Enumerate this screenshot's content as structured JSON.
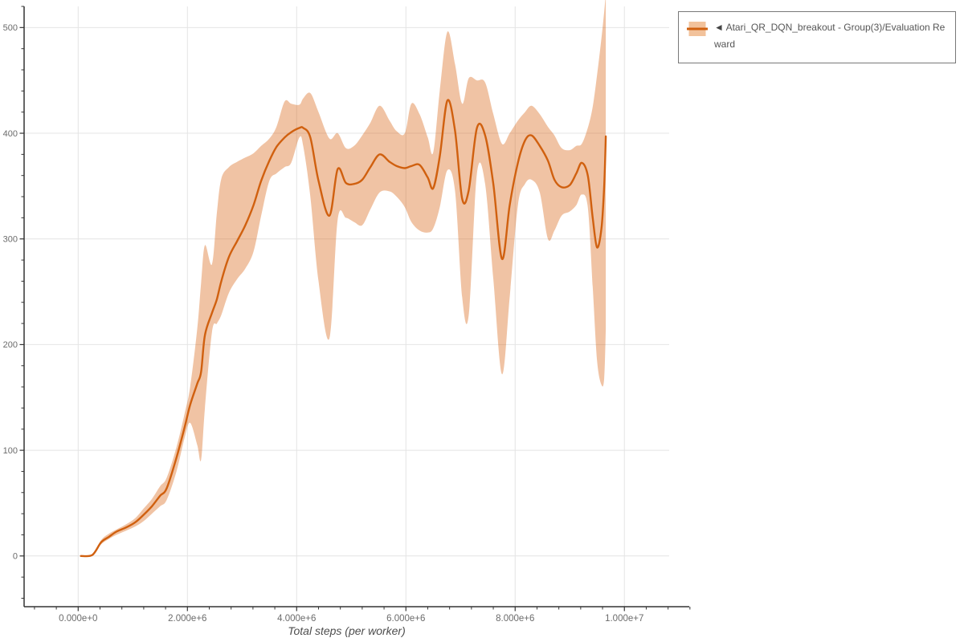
{
  "chart_data": {
    "type": "line",
    "title": "",
    "xlabel": "Total steps (per worker)",
    "ylabel": "",
    "x_unit": "millions of steps",
    "xlim_millions": [
      -0.99,
      10.82
    ],
    "ylim": [
      -48,
      520
    ],
    "grid": true,
    "legend_position": "top-right-outside",
    "legend": {
      "arrow": "◄",
      "label": "Atari_QR_DQN_breakout - Group(3)/Evaluation Reward"
    },
    "x_ticks": {
      "values_millions": [
        0,
        2,
        4,
        6,
        8,
        10
      ],
      "labels": [
        "0.000e+0",
        "2.000e+6",
        "4.000e+6",
        "6.000e+6",
        "8.000e+6",
        "1.000e+7"
      ],
      "minor_step_millions": 0.4
    },
    "y_ticks": {
      "values": [
        0,
        100,
        200,
        300,
        400,
        500
      ],
      "labels": [
        "0",
        "100",
        "200",
        "300",
        "400",
        "500"
      ],
      "minor_step": 20
    },
    "x_millions": [
      0.05,
      0.26,
      0.42,
      0.56,
      0.7,
      0.88,
      1.05,
      1.2,
      1.35,
      1.5,
      1.62,
      1.8,
      1.95,
      2.05,
      2.18,
      2.25,
      2.32,
      2.45,
      2.54,
      2.62,
      2.76,
      2.91,
      3.06,
      3.21,
      3.35,
      3.5,
      3.63,
      3.78,
      3.9,
      4.05,
      4.12,
      4.25,
      4.4,
      4.6,
      4.75,
      4.9,
      5.05,
      5.2,
      5.35,
      5.52,
      5.7,
      5.83,
      5.98,
      6.1,
      6.25,
      6.4,
      6.5,
      6.62,
      6.76,
      6.9,
      7.03,
      7.15,
      7.3,
      7.45,
      7.6,
      7.76,
      7.9,
      8.05,
      8.18,
      8.3,
      8.45,
      8.6,
      8.72,
      8.85,
      9.0,
      9.12,
      9.22,
      9.33,
      9.42,
      9.5,
      9.58,
      9.63,
      9.66
    ],
    "series": [
      {
        "name": "mean",
        "values": [
          0,
          1,
          13,
          18,
          23,
          27,
          32,
          39,
          47,
          57,
          64,
          93,
          122,
          143,
          163,
          174,
          209,
          230,
          243,
          260,
          283,
          298,
          313,
          332,
          355,
          374,
          387,
          396,
          401,
          405,
          405,
          396,
          355,
          322,
          366,
          353,
          352,
          356,
          368,
          380,
          373,
          369,
          367,
          369,
          370,
          358,
          348,
          378,
          431,
          402,
          338,
          346,
          405,
          398,
          352,
          281,
          332,
          372,
          393,
          398,
          388,
          374,
          356,
          349,
          351,
          362,
          372,
          360,
          320,
          292,
          310,
          350,
          397
        ]
      },
      {
        "name": "band_low",
        "values": [
          0,
          1,
          11,
          16,
          20,
          24,
          28,
          33,
          40,
          47,
          53,
          80,
          112,
          126,
          105,
          91,
          140,
          212,
          220,
          228,
          249,
          262,
          272,
          288,
          322,
          355,
          362,
          368,
          372,
          396,
          388,
          340,
          260,
          206,
          318,
          320,
          316,
          313,
          328,
          344,
          345,
          340,
          330,
          316,
          308,
          306,
          310,
          330,
          365,
          345,
          245,
          228,
          362,
          352,
          262,
          172,
          245,
          332,
          352,
          356,
          344,
          300,
          308,
          322,
          326,
          332,
          342,
          330,
          255,
          185,
          162,
          168,
          215
        ]
      },
      {
        "name": "band_high",
        "values": [
          0,
          1,
          15,
          21,
          25,
          30,
          36,
          45,
          54,
          66,
          74,
          103,
          135,
          160,
          215,
          258,
          294,
          276,
          325,
          357,
          368,
          373,
          377,
          381,
          388,
          395,
          406,
          430,
          428,
          427,
          433,
          438,
          420,
          395,
          400,
          386,
          388,
          398,
          410,
          426,
          412,
          402,
          400,
          428,
          418,
          396,
          382,
          440,
          496,
          465,
          428,
          452,
          450,
          448,
          418,
          390,
          400,
          412,
          420,
          426,
          418,
          406,
          398,
          386,
          384,
          388,
          390,
          405,
          425,
          455,
          490,
          515,
          532
        ]
      }
    ],
    "colors": {
      "line": "#d0600f",
      "band_fill": "rgba(215,98,15,0.38)",
      "band_swatch": "#f2c29b",
      "grid": "#e4e4e4",
      "axis": "#333333",
      "tick_label": "#6b6b6b",
      "axis_title": "#4d4d4d",
      "legend_border": "#787878",
      "legend_text": "#555555"
    }
  }
}
